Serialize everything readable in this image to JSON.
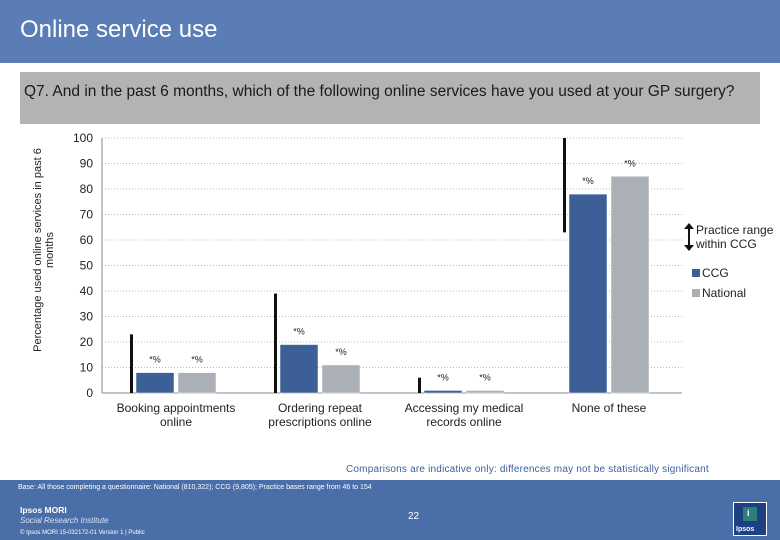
{
  "slide": {
    "title": "Online service use",
    "question": "Q7. And in the past 6 months, which of the following online services have you used at your GP surgery?",
    "note": "Comparisons are indicative only: differences may not be statistically significant",
    "base": "Base: All those completing a questionnaire: National (810,322); CCG (9,805); Practice bases range from 46 to 154",
    "org_name": "Ipsos MORI",
    "org_sub": "Social Research Institute",
    "page_number": "22",
    "copyright": "© Ipsos MORI    15-032172-01 Version 1 | Public",
    "logo_text": "Ipsos"
  },
  "chart_data": {
    "type": "bar",
    "title": "Q7. And in the past 6 months, which of the following online services have you used at your GP surgery?",
    "xlabel": "",
    "ylabel": "Percentage used online services in past 6 months",
    "ylim": [
      0,
      100
    ],
    "yticks": [
      0,
      10,
      20,
      30,
      40,
      50,
      60,
      70,
      80,
      90,
      100
    ],
    "grid": true,
    "legend_position": "right",
    "categories": [
      "Booking appointments online",
      "Ordering repeat prescriptions online",
      "Accessing my medical records online",
      "None of these"
    ],
    "series": [
      {
        "name": "CCG",
        "color": "#3c5f97",
        "values": [
          8,
          19,
          1,
          78
        ],
        "labels": [
          "*%",
          "*%",
          "*%",
          "*%"
        ]
      },
      {
        "name": "National",
        "color": "#aab0b6",
        "values": [
          8,
          11,
          1,
          85
        ],
        "labels": [
          "*%",
          "*%",
          "*%",
          "*%"
        ]
      }
    ],
    "practice_range": {
      "name": "Practice range within CCG",
      "color": "#111111",
      "ranges": [
        [
          0,
          23
        ],
        [
          0,
          39
        ],
        [
          0,
          6
        ],
        [
          63,
          100
        ]
      ]
    }
  }
}
